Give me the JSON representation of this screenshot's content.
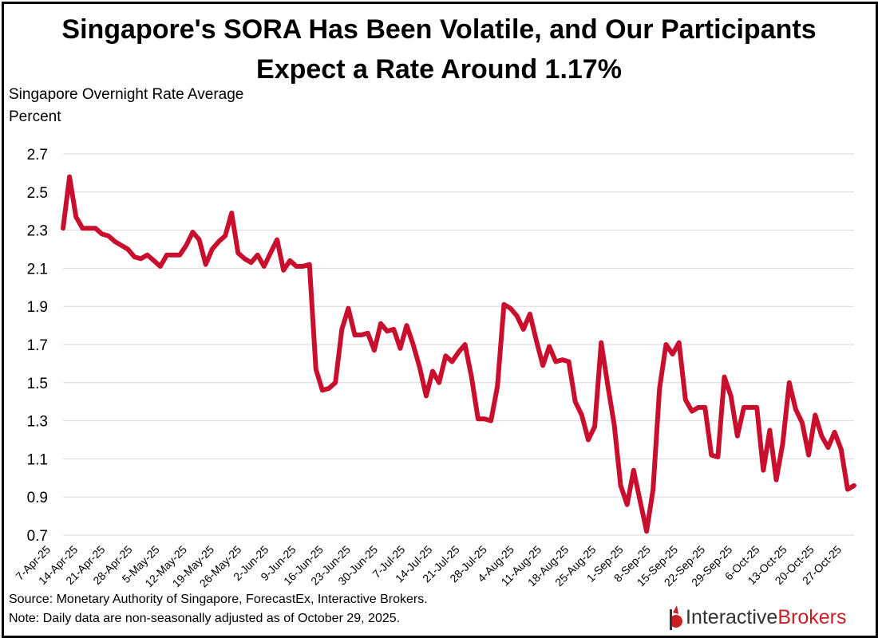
{
  "title_line1": "Singapore's SORA Has Been Volatile, and Our Participants",
  "title_line2": "Expect a Rate Around 1.17%",
  "source": "Source: Monetary Authority of Singapore, ForecastEx, Interactive Brokers.",
  "note": "Note: Daily data are non-seasonally adjusted as of October 29, 2025.",
  "logo": {
    "part1": "Interactive",
    "part2": "Brokers",
    "icon": "interactive-brokers-logo-icon"
  },
  "colors": {
    "line": "#c8102e",
    "grid": "#d9d9d9",
    "logo_red": "#c81f25"
  },
  "chart_data": {
    "type": "line",
    "ylabel_line1": "Singapore Overnight Rate Average",
    "ylabel_line2": "Percent",
    "ylim": [
      0.7,
      2.7
    ],
    "yticks": [
      "2.7",
      "2.5",
      "2.3",
      "2.1",
      "1.9",
      "1.7",
      "1.5",
      "1.3",
      "1.1",
      "0.9",
      "0.7"
    ],
    "xticks": [
      "7-Apr-25",
      "14-Apr-25",
      "21-Apr-25",
      "28-Apr-25",
      "5-May-25",
      "12-May-25",
      "19-May-25",
      "26-May-25",
      "2-Jun-25",
      "9-Jun-25",
      "16-Jun-25",
      "23-Jun-25",
      "30-Jun-25",
      "7-Jul-25",
      "14-Jul-25",
      "21-Jul-25",
      "28-Jul-25",
      "4-Aug-25",
      "11-Aug-25",
      "18-Aug-25",
      "25-Aug-25",
      "1-Sep-25",
      "8-Sep-25",
      "15-Sep-25",
      "22-Sep-25",
      "29-Sep-25",
      "6-Oct-25",
      "13-Oct-25",
      "20-Oct-25",
      "27-Oct-25"
    ],
    "grid": true,
    "legend": "none",
    "series": [
      {
        "values": [
          2.31,
          2.58,
          2.37,
          2.31,
          2.31,
          2.31,
          2.28,
          2.27,
          2.24,
          2.22,
          2.2,
          2.16,
          2.15,
          2.17,
          2.14,
          2.11,
          2.17,
          2.17,
          2.17,
          2.22,
          2.29,
          2.25,
          2.12,
          2.2,
          2.24,
          2.27,
          2.39,
          2.18,
          2.15,
          2.13,
          2.17,
          2.11,
          2.18,
          2.25,
          2.09,
          2.14,
          2.11,
          2.11,
          2.12,
          1.57,
          1.46,
          1.47,
          1.5,
          1.78,
          1.89,
          1.75,
          1.75,
          1.76,
          1.67,
          1.81,
          1.77,
          1.78,
          1.68,
          1.8,
          1.7,
          1.58,
          1.43,
          1.56,
          1.5,
          1.64,
          1.61,
          1.66,
          1.7,
          1.53,
          1.31,
          1.31,
          1.3,
          1.48,
          1.91,
          1.89,
          1.85,
          1.78,
          1.86,
          1.72,
          1.59,
          1.69,
          1.61,
          1.62,
          1.61,
          1.4,
          1.33,
          1.2,
          1.27,
          1.71,
          1.49,
          1.28,
          0.96,
          0.86,
          1.04,
          0.88,
          0.72,
          0.94,
          1.47,
          1.7,
          1.65,
          1.71,
          1.41,
          1.35,
          1.37,
          1.37,
          1.12,
          1.11,
          1.53,
          1.43,
          1.22,
          1.37,
          1.37,
          1.37,
          1.04,
          1.25,
          0.99,
          1.18,
          1.5,
          1.36,
          1.29,
          1.12,
          1.33,
          1.22,
          1.16,
          1.24,
          1.15,
          0.94,
          0.96
        ]
      }
    ]
  }
}
